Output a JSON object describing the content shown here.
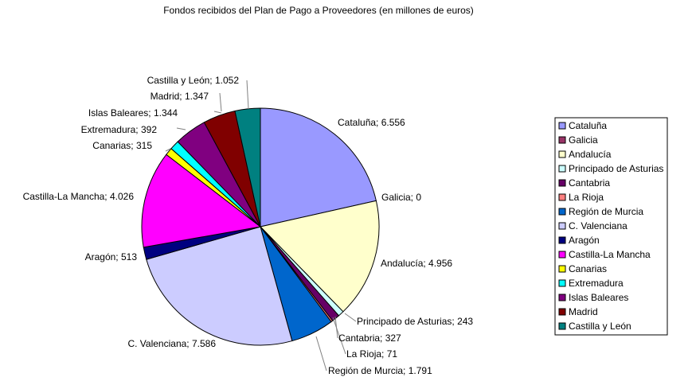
{
  "chart_data": {
    "type": "pie",
    "title": "Fondos recibidos del Plan de Pago a Proveedores (en millones de euros)",
    "legend_position": "right",
    "slices": [
      {
        "category": "Cataluña",
        "value": 6556,
        "label": "Cataluña; 6.556",
        "color": "#9999ff"
      },
      {
        "category": "Galicia",
        "value": 0,
        "label": "Galicia; 0",
        "color": "#993366"
      },
      {
        "category": "Andalucía",
        "value": 4956,
        "label": "Andalucía; 4.956",
        "color": "#ffffcc"
      },
      {
        "category": "Principado de Asturias",
        "value": 243,
        "label": "Principado de Asturias; 243",
        "color": "#ccffff"
      },
      {
        "category": "Cantabria",
        "value": 327,
        "label": "Cantabria; 327",
        "color": "#660066"
      },
      {
        "category": "La Rioja",
        "value": 71,
        "label": "La Rioja; 71",
        "color": "#ff8080"
      },
      {
        "category": "Región de Murcia",
        "value": 1791,
        "label": "Región de Murcia; 1.791",
        "color": "#0066cc"
      },
      {
        "category": "C. Valenciana",
        "value": 7586,
        "label": "C. Valenciana; 7.586",
        "color": "#ccccff"
      },
      {
        "category": "Aragón",
        "value": 513,
        "label": "Aragón; 513",
        "color": "#000080"
      },
      {
        "category": "Castilla-La Mancha",
        "value": 4026,
        "label": "Castilla-La Mancha; 4.026",
        "color": "#ff00ff"
      },
      {
        "category": "Canarias",
        "value": 315,
        "label": "Canarias; 315",
        "color": "#ffff00"
      },
      {
        "category": "Extremadura",
        "value": 392,
        "label": "Extremadura; 392",
        "color": "#00ffff"
      },
      {
        "category": "Islas Baleares",
        "value": 1344,
        "label": "Islas Baleares; 1.344",
        "color": "#800080"
      },
      {
        "category": "Madrid",
        "value": 1347,
        "label": "Madrid; 1.347",
        "color": "#800000"
      },
      {
        "category": "Castilla y León",
        "value": 1052,
        "label": "Castilla y León; 1.052",
        "color": "#008080"
      }
    ]
  }
}
